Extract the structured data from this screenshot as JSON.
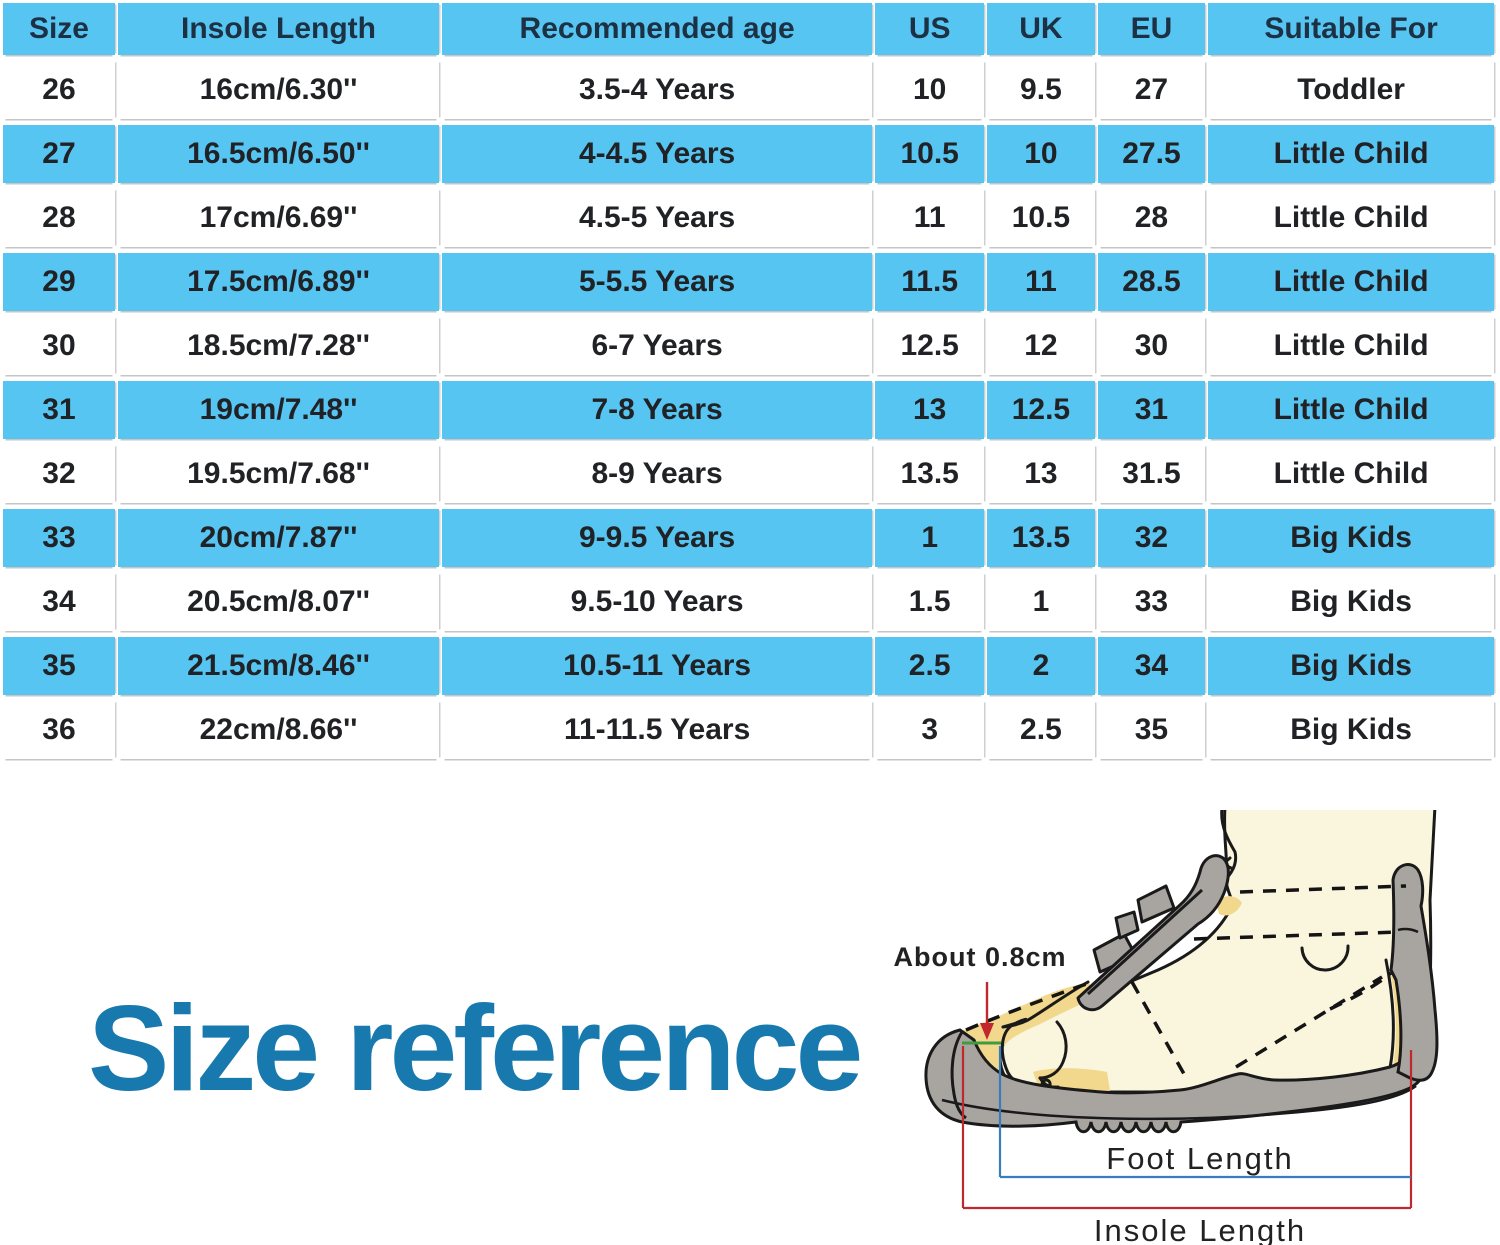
{
  "table": {
    "columns": [
      "Size",
      "Insole Length",
      "Recommended age",
      "US",
      "UK",
      "EU",
      "Suitable For"
    ],
    "rows": [
      [
        "26",
        "16cm/6.30''",
        "3.5-4 Years",
        "10",
        "9.5",
        "27",
        "Toddler"
      ],
      [
        "27",
        "16.5cm/6.50''",
        "4-4.5 Years",
        "10.5",
        "10",
        "27.5",
        "Little Child"
      ],
      [
        "28",
        "17cm/6.69''",
        "4.5-5 Years",
        "11",
        "10.5",
        "28",
        "Little Child"
      ],
      [
        "29",
        "17.5cm/6.89''",
        "5-5.5 Years",
        "11.5",
        "11",
        "28.5",
        "Little Child"
      ],
      [
        "30",
        "18.5cm/7.28''",
        "6-7 Years",
        "12.5",
        "12",
        "30",
        "Little Child"
      ],
      [
        "31",
        "19cm/7.48''",
        "7-8 Years",
        "13",
        "12.5",
        "31",
        "Little Child"
      ],
      [
        "32",
        "19.5cm/7.68''",
        "8-9 Years",
        "13.5",
        "13",
        "31.5",
        "Little Child"
      ],
      [
        "33",
        "20cm/7.87''",
        "9-9.5 Years",
        "1",
        "13.5",
        "32",
        "Big Kids"
      ],
      [
        "34",
        "20.5cm/8.07''",
        "9.5-10 Years",
        "1.5",
        "1",
        "33",
        "Big Kids"
      ],
      [
        "35",
        "21.5cm/8.46''",
        "10.5-11 Years",
        "2.5",
        "2",
        "34",
        "Big Kids"
      ],
      [
        "36",
        "22cm/8.66''",
        "11-11.5 Years",
        "3",
        "2.5",
        "35",
        "Big Kids"
      ]
    ]
  },
  "size_reference": {
    "title": "Size reference"
  },
  "diagram": {
    "toe_gap_label": "About 0.8cm",
    "foot_length_label": "Foot Length",
    "insole_length_label": "Insole Length"
  },
  "colors": {
    "row_blue": "#57c5f2",
    "header_text": "#1c3144",
    "cell_text": "#212226",
    "title_blue": "#1879ae",
    "arrow_red": "#c1272d",
    "gap_green": "#3f9b3f",
    "foot_length_blue": "#3a7dbd",
    "insole_yellow": "#f2d88c",
    "shoe_grey": "#a8a4a0",
    "foot_cream": "#faf5dd"
  }
}
